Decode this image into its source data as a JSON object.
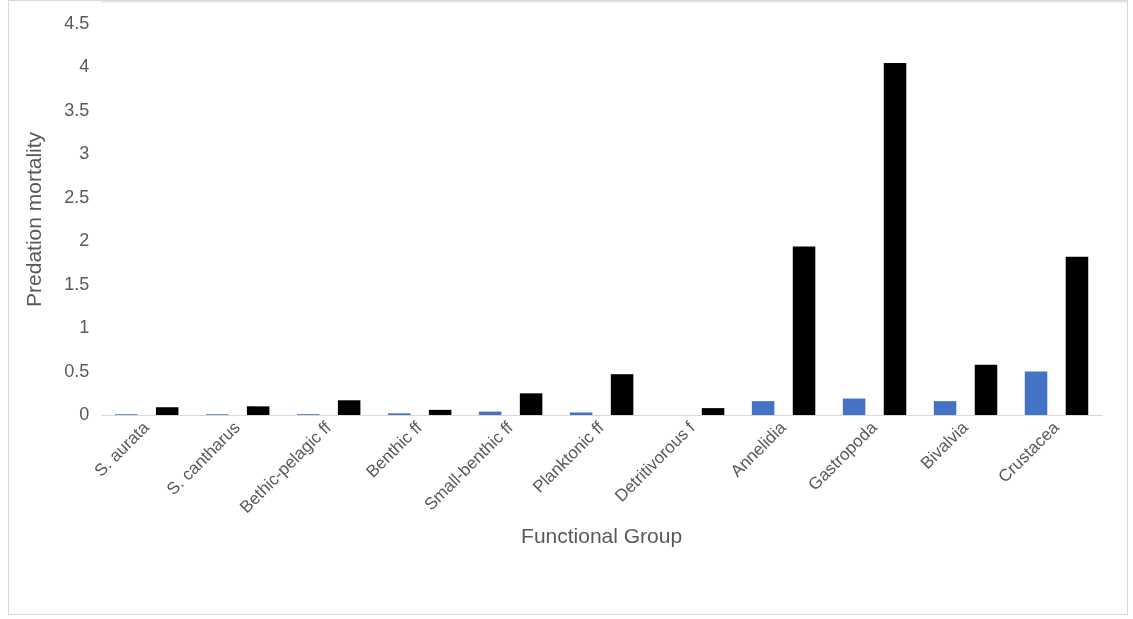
{
  "chart_data": {
    "type": "bar",
    "xlabel": "Functional Group",
    "ylabel": "Predation mortality",
    "categories": [
      "S. aurata",
      "S. cantharus",
      "Bethic-pelagic ff",
      "Benthic ff",
      "Small-benthic ff",
      "Planktonic ff",
      "Detritivorous f",
      "Annelidia",
      "Gastropoda",
      "Bivalvia",
      "Crustacea"
    ],
    "series": [
      {
        "color": "#4472c4",
        "values": [
          0.01,
          0.01,
          0.01,
          0.02,
          0.04,
          0.03,
          0,
          0.16,
          0.19,
          0.16,
          0.5
        ]
      },
      {
        "color": "#000000",
        "values": [
          0.09,
          0.1,
          0.17,
          0.06,
          0.25,
          0.47,
          0.08,
          1.94,
          4.05,
          0.58,
          1.82
        ]
      }
    ],
    "ylim": [
      0,
      4.5
    ],
    "yticks": [
      0,
      0.5,
      1,
      1.5,
      2,
      2.5,
      3,
      3.5,
      4,
      4.5
    ],
    "grid": false,
    "legend": false
  }
}
